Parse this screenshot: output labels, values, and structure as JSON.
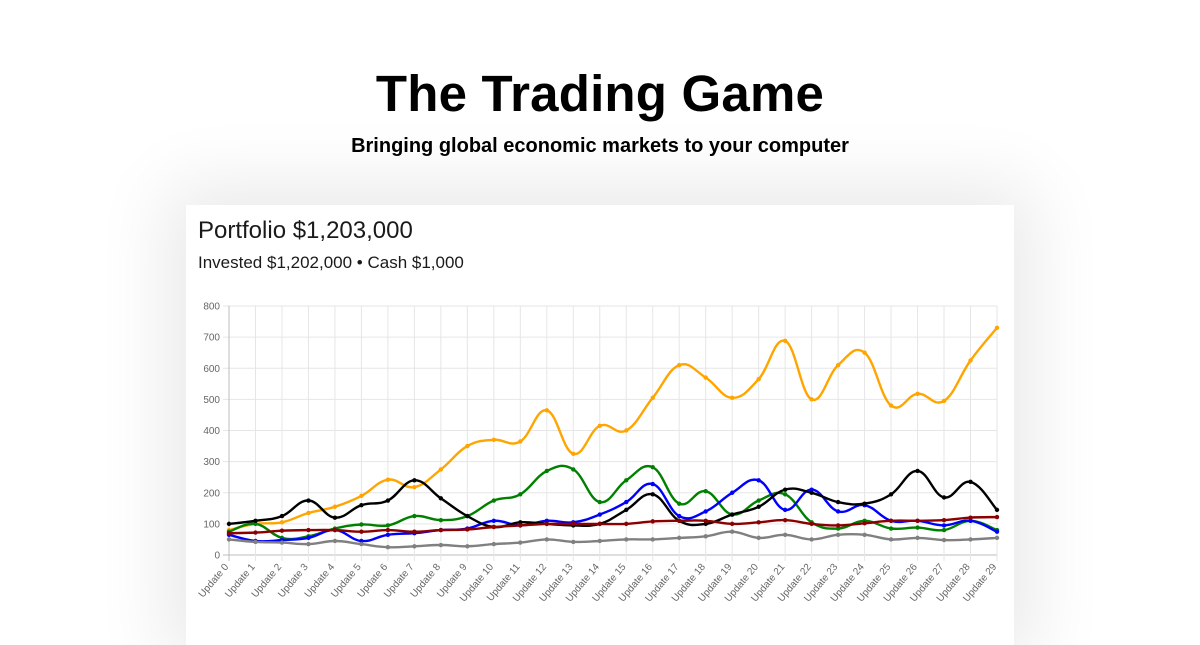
{
  "header": {
    "title": "The Trading Game",
    "subtitle": "Bringing global economic markets to your computer"
  },
  "portfolio": {
    "title": "Portfolio $1,203,000",
    "summary": "Invested $1,202,000 • Cash $1,000"
  },
  "chart_data": {
    "type": "line",
    "categories": [
      "Update 0",
      "Update 1",
      "Update 2",
      "Update 3",
      "Update 4",
      "Update 5",
      "Update 6",
      "Update 7",
      "Update 8",
      "Update 9",
      "Update 10",
      "Update 11",
      "Update 12",
      "Update 13",
      "Update 14",
      "Update 15",
      "Update 16",
      "Update 17",
      "Update 18",
      "Update 19",
      "Update 20",
      "Update 21",
      "Update 22",
      "Update 23",
      "Update 24",
      "Update 25",
      "Update 26",
      "Update 27",
      "Update 28",
      "Update 29"
    ],
    "ylim": [
      0,
      800
    ],
    "yticks": [
      0,
      100,
      200,
      300,
      400,
      500,
      600,
      700,
      800
    ],
    "grid": true,
    "legend": "none",
    "series": [
      {
        "color": "#ffa500",
        "values": [
          80,
          100,
          105,
          135,
          155,
          190,
          242,
          218,
          275,
          350,
          370,
          365,
          465,
          325,
          415,
          400,
          505,
          610,
          570,
          505,
          565,
          688,
          500,
          610,
          650,
          480,
          518,
          495,
          625,
          730
        ]
      },
      {
        "color": "#008000",
        "values": [
          75,
          100,
          55,
          60,
          85,
          98,
          95,
          125,
          112,
          125,
          175,
          195,
          270,
          275,
          170,
          240,
          282,
          165,
          205,
          130,
          175,
          195,
          105,
          85,
          110,
          85,
          88,
          80,
          110,
          80
        ]
      },
      {
        "color": "#0000ff",
        "values": [
          65,
          45,
          48,
          55,
          80,
          45,
          65,
          70,
          80,
          85,
          110,
          95,
          110,
          105,
          130,
          170,
          228,
          125,
          140,
          200,
          240,
          145,
          210,
          140,
          160,
          110,
          110,
          95,
          110,
          75
        ]
      },
      {
        "color": "#000000",
        "values": [
          100,
          110,
          125,
          175,
          120,
          160,
          175,
          240,
          182,
          125,
          90,
          105,
          100,
          95,
          100,
          145,
          195,
          110,
          100,
          130,
          155,
          210,
          200,
          170,
          165,
          195,
          270,
          185,
          235,
          145
        ]
      },
      {
        "color": "#8b0000",
        "values": [
          70,
          72,
          78,
          80,
          80,
          75,
          80,
          75,
          80,
          82,
          90,
          95,
          100,
          100,
          100,
          100,
          108,
          110,
          110,
          100,
          105,
          112,
          100,
          95,
          102,
          110,
          110,
          112,
          120,
          122
        ]
      },
      {
        "color": "#808080",
        "values": [
          50,
          42,
          40,
          35,
          45,
          35,
          25,
          28,
          32,
          28,
          35,
          40,
          50,
          42,
          45,
          50,
          50,
          55,
          60,
          75,
          55,
          65,
          50,
          65,
          65,
          50,
          55,
          48,
          50,
          55
        ]
      }
    ]
  }
}
